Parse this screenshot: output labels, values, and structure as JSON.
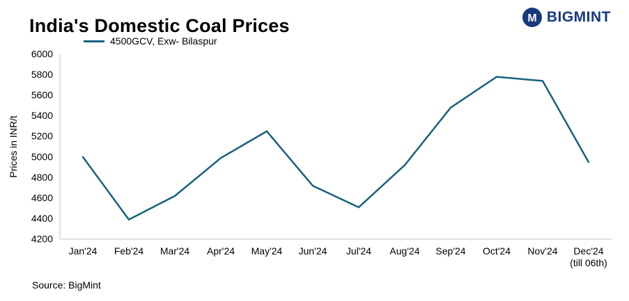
{
  "header": {
    "title": "India's Domestic Coal Prices",
    "brand": "BIGMINT"
  },
  "legend": {
    "label": "4500GCV, Exw- Bilaspur"
  },
  "source": "Source: BigMint",
  "colors": {
    "line": "#16617E",
    "brand": "#17397E",
    "axis": "#C6C6C6",
    "text": "#000000"
  },
  "chart_data": {
    "type": "line",
    "title": "India's Domestic Coal Prices",
    "series_name": "4500GCV, Exw- Bilaspur",
    "ylabel": "Prices in INR/t",
    "categories": [
      "Jan'24",
      "Feb'24",
      "Mar'24",
      "Apr'24",
      "May'24",
      "Jun'24",
      "Jul'24",
      "Aug'24",
      "Sep'24",
      "Oct'24",
      "Nov'24",
      "Dec'24"
    ],
    "last_category_note": "(till 06th)",
    "values": [
      5000,
      4390,
      4620,
      4990,
      5250,
      4720,
      4510,
      4920,
      5480,
      5780,
      5740,
      4950
    ],
    "ylim": [
      4200,
      6000
    ],
    "ytick_step": 200,
    "grid": false,
    "legend_position": "top-left"
  }
}
